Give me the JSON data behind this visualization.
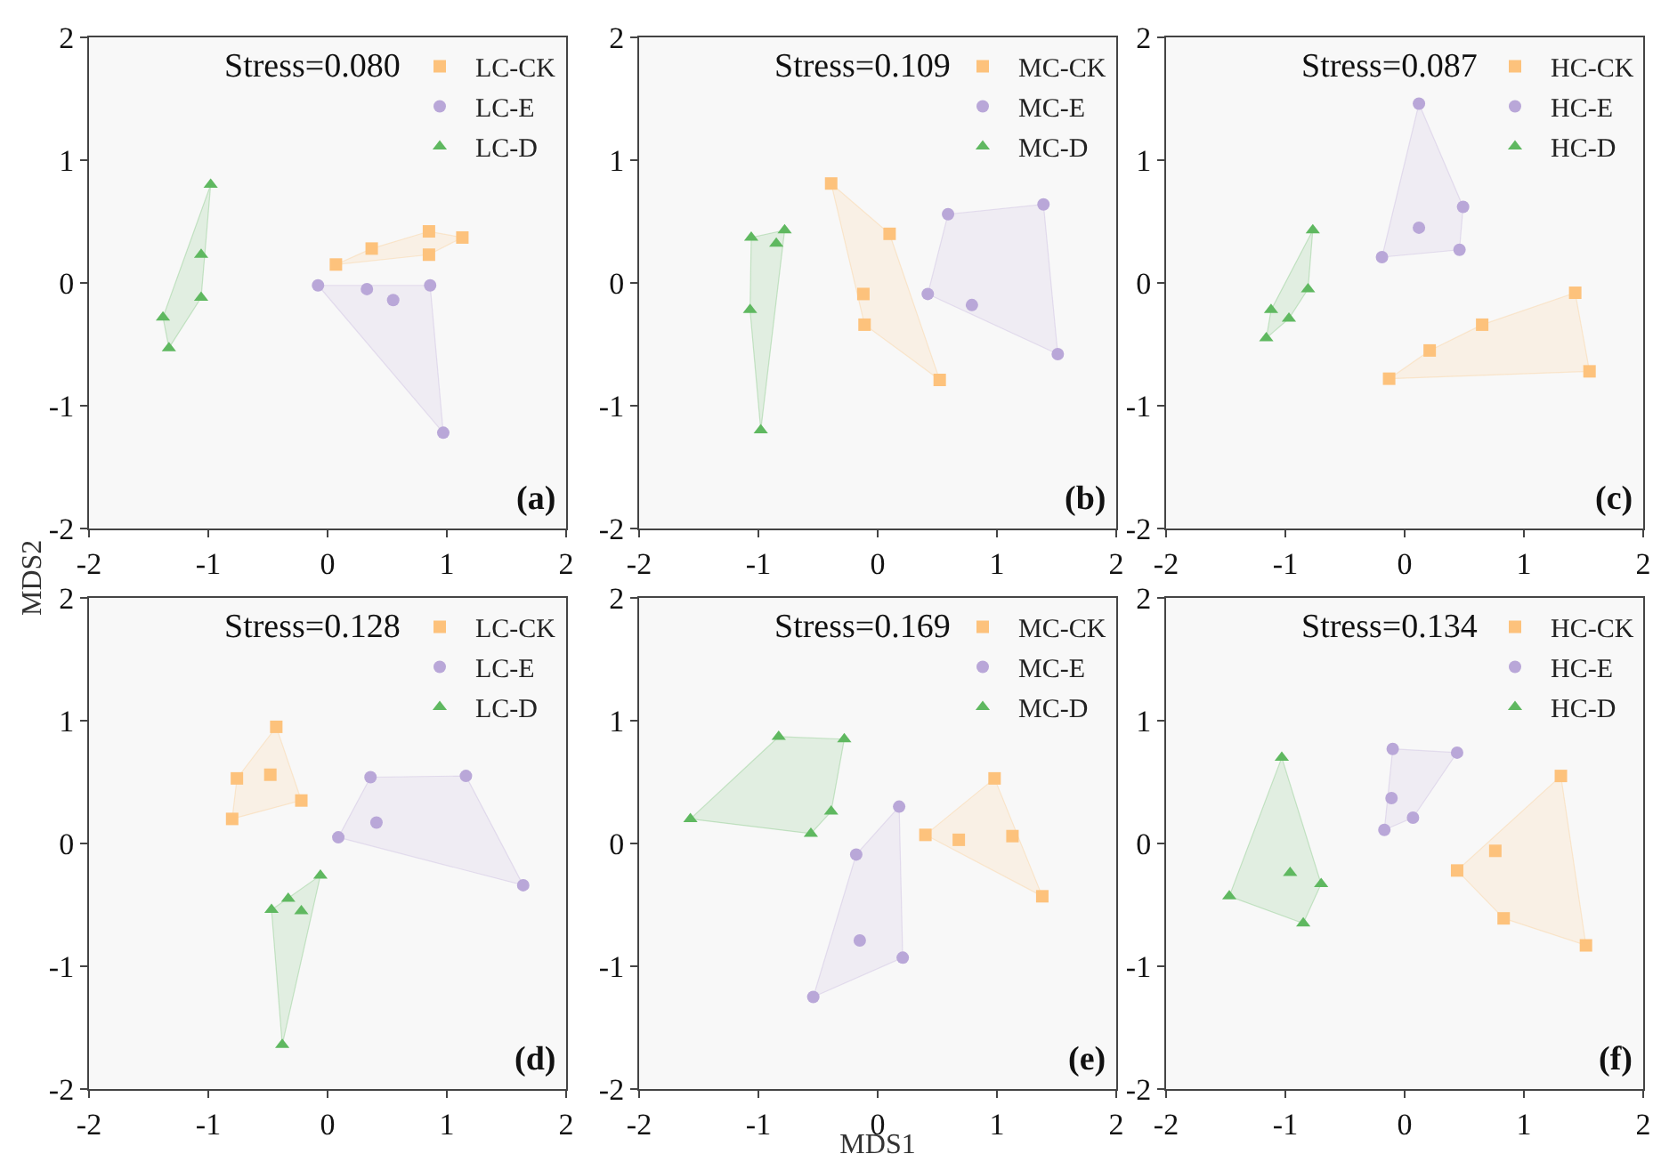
{
  "chart_data": [
    {
      "type": "scatter",
      "annotations": [
        "Stress=0.080",
        "(a)"
      ],
      "xlim": [
        -2,
        2
      ],
      "ylim": [
        -2,
        2
      ],
      "xticks": [
        -2,
        -1,
        0,
        1,
        2
      ],
      "yticks": [
        -2,
        -1,
        0,
        1,
        2
      ],
      "grid": false,
      "legend": "top right",
      "series": [
        {
          "name": "LC-CK",
          "color": "#fdc27c",
          "marker": "square",
          "x": [
            0.07,
            0.37,
            0.85,
            0.85,
            1.13
          ],
          "values": [
            0.15,
            0.28,
            0.42,
            0.23,
            0.37
          ]
        },
        {
          "name": "LC-E",
          "color": "#b9a7d8",
          "marker": "circle",
          "x": [
            -0.08,
            0.33,
            0.55,
            0.86,
            0.97
          ],
          "values": [
            -0.02,
            -0.05,
            -0.14,
            -0.02,
            -1.22
          ]
        },
        {
          "name": "LC-D",
          "color": "#5fb860",
          "marker": "triangle",
          "x": [
            -0.98,
            -1.06,
            -1.06,
            -1.38,
            -1.33
          ],
          "values": [
            0.8,
            0.23,
            -0.12,
            -0.28,
            -0.53
          ]
        }
      ]
    },
    {
      "type": "scatter",
      "annotations": [
        "Stress=0.109",
        "(b)"
      ],
      "xlim": [
        -2,
        2
      ],
      "ylim": [
        -2,
        2
      ],
      "xticks": [
        -2,
        -1,
        0,
        1,
        2
      ],
      "yticks": [
        -2,
        -1,
        0,
        1,
        2
      ],
      "grid": false,
      "legend": "top right",
      "series": [
        {
          "name": "MC-CK",
          "color": "#fdc27c",
          "marker": "square",
          "x": [
            -0.39,
            0.1,
            -0.12,
            -0.11,
            0.52
          ],
          "values": [
            0.81,
            0.4,
            -0.09,
            -0.34,
            -0.79
          ]
        },
        {
          "name": "MC-E",
          "color": "#b9a7d8",
          "marker": "circle",
          "x": [
            0.59,
            1.39,
            0.42,
            0.79,
            1.51
          ],
          "values": [
            0.56,
            0.64,
            -0.09,
            -0.18,
            -0.58
          ]
        },
        {
          "name": "MC-D",
          "color": "#5fb860",
          "marker": "triangle",
          "x": [
            -1.06,
            -0.78,
            -0.85,
            -1.07,
            -0.98
          ],
          "values": [
            0.37,
            0.43,
            0.32,
            -0.22,
            -1.2
          ]
        }
      ]
    },
    {
      "type": "scatter",
      "annotations": [
        "Stress=0.087",
        "(c)"
      ],
      "xlim": [
        -2,
        2
      ],
      "ylim": [
        -2,
        2
      ],
      "xticks": [
        -2,
        -1,
        0,
        1,
        2
      ],
      "yticks": [
        -2,
        -1,
        0,
        1,
        2
      ],
      "grid": false,
      "legend": "top right",
      "series": [
        {
          "name": "HC-CK",
          "color": "#fdc27c",
          "marker": "square",
          "x": [
            1.43,
            0.65,
            0.21,
            -0.13,
            1.55
          ],
          "values": [
            -0.08,
            -0.34,
            -0.55,
            -0.78,
            -0.72
          ]
        },
        {
          "name": "HC-E",
          "color": "#b9a7d8",
          "marker": "circle",
          "x": [
            0.12,
            0.49,
            0.12,
            0.46,
            -0.19
          ],
          "values": [
            1.46,
            0.62,
            0.45,
            0.27,
            0.21
          ]
        },
        {
          "name": "HC-D",
          "color": "#5fb860",
          "marker": "triangle",
          "x": [
            -0.77,
            -0.81,
            -1.12,
            -0.97,
            -1.16
          ],
          "values": [
            0.43,
            -0.05,
            -0.22,
            -0.29,
            -0.45
          ]
        }
      ]
    },
    {
      "type": "scatter",
      "annotations": [
        "Stress=0.128",
        "(d)"
      ],
      "ylabel": "MDS2",
      "xlim": [
        -2,
        2
      ],
      "ylim": [
        -2,
        2
      ],
      "xticks": [
        -2,
        -1,
        0,
        1,
        2
      ],
      "yticks": [
        -2,
        -1,
        0,
        1,
        2
      ],
      "grid": false,
      "legend": "top right",
      "series": [
        {
          "name": "LC-CK",
          "color": "#fdc27c",
          "marker": "square",
          "x": [
            -0.43,
            -0.76,
            -0.48,
            -0.22,
            -0.8
          ],
          "values": [
            0.95,
            0.53,
            0.56,
            0.35,
            0.2
          ]
        },
        {
          "name": "LC-E",
          "color": "#b9a7d8",
          "marker": "circle",
          "x": [
            0.36,
            1.16,
            0.41,
            0.09,
            1.64
          ],
          "values": [
            0.54,
            0.55,
            0.17,
            0.05,
            -0.34
          ]
        },
        {
          "name": "LC-D",
          "color": "#5fb860",
          "marker": "triangle",
          "x": [
            -0.06,
            -0.33,
            -0.47,
            -0.22,
            -0.38
          ],
          "values": [
            -0.26,
            -0.45,
            -0.54,
            -0.55,
            -1.64
          ]
        }
      ]
    },
    {
      "type": "scatter",
      "annotations": [
        "Stress=0.169",
        "(e)"
      ],
      "xlabel": "MDS1",
      "xlim": [
        -2,
        2
      ],
      "ylim": [
        -2,
        2
      ],
      "xticks": [
        -2,
        -1,
        0,
        1,
        2
      ],
      "yticks": [
        -2,
        -1,
        0,
        1,
        2
      ],
      "grid": false,
      "legend": "top right",
      "series": [
        {
          "name": "MC-CK",
          "color": "#fdc27c",
          "marker": "square",
          "x": [
            0.98,
            0.4,
            0.68,
            1.13,
            1.38
          ],
          "values": [
            0.53,
            0.07,
            0.03,
            0.06,
            -0.43
          ]
        },
        {
          "name": "MC-E",
          "color": "#b9a7d8",
          "marker": "circle",
          "x": [
            0.18,
            -0.18,
            -0.15,
            0.21,
            -0.54
          ],
          "values": [
            0.3,
            -0.09,
            -0.79,
            -0.93,
            -1.25
          ]
        },
        {
          "name": "MC-D",
          "color": "#5fb860",
          "marker": "triangle",
          "x": [
            -0.83,
            -0.28,
            -0.39,
            -0.56,
            -1.57
          ],
          "values": [
            0.87,
            0.85,
            0.26,
            0.08,
            0.2
          ]
        }
      ]
    },
    {
      "type": "scatter",
      "annotations": [
        "Stress=0.134",
        "(f)"
      ],
      "xlim": [
        -2,
        2
      ],
      "ylim": [
        -2,
        2
      ],
      "xticks": [
        -2,
        -1,
        0,
        1,
        2
      ],
      "yticks": [
        -2,
        -1,
        0,
        1,
        2
      ],
      "grid": false,
      "legend": "top right",
      "series": [
        {
          "name": "HC-CK",
          "color": "#fdc27c",
          "marker": "square",
          "x": [
            1.31,
            0.76,
            0.44,
            0.83,
            1.52
          ],
          "values": [
            0.55,
            -0.06,
            -0.22,
            -0.61,
            -0.83
          ]
        },
        {
          "name": "HC-E",
          "color": "#b9a7d8",
          "marker": "circle",
          "x": [
            -0.1,
            0.44,
            -0.11,
            0.07,
            -0.17
          ],
          "values": [
            0.77,
            0.74,
            0.37,
            0.21,
            0.11
          ]
        },
        {
          "name": "HC-D",
          "color": "#5fb860",
          "marker": "triangle",
          "x": [
            -1.03,
            -0.96,
            -0.7,
            -1.47,
            -0.85
          ],
          "values": [
            0.7,
            -0.24,
            -0.33,
            -0.43,
            -0.65
          ]
        }
      ]
    }
  ]
}
